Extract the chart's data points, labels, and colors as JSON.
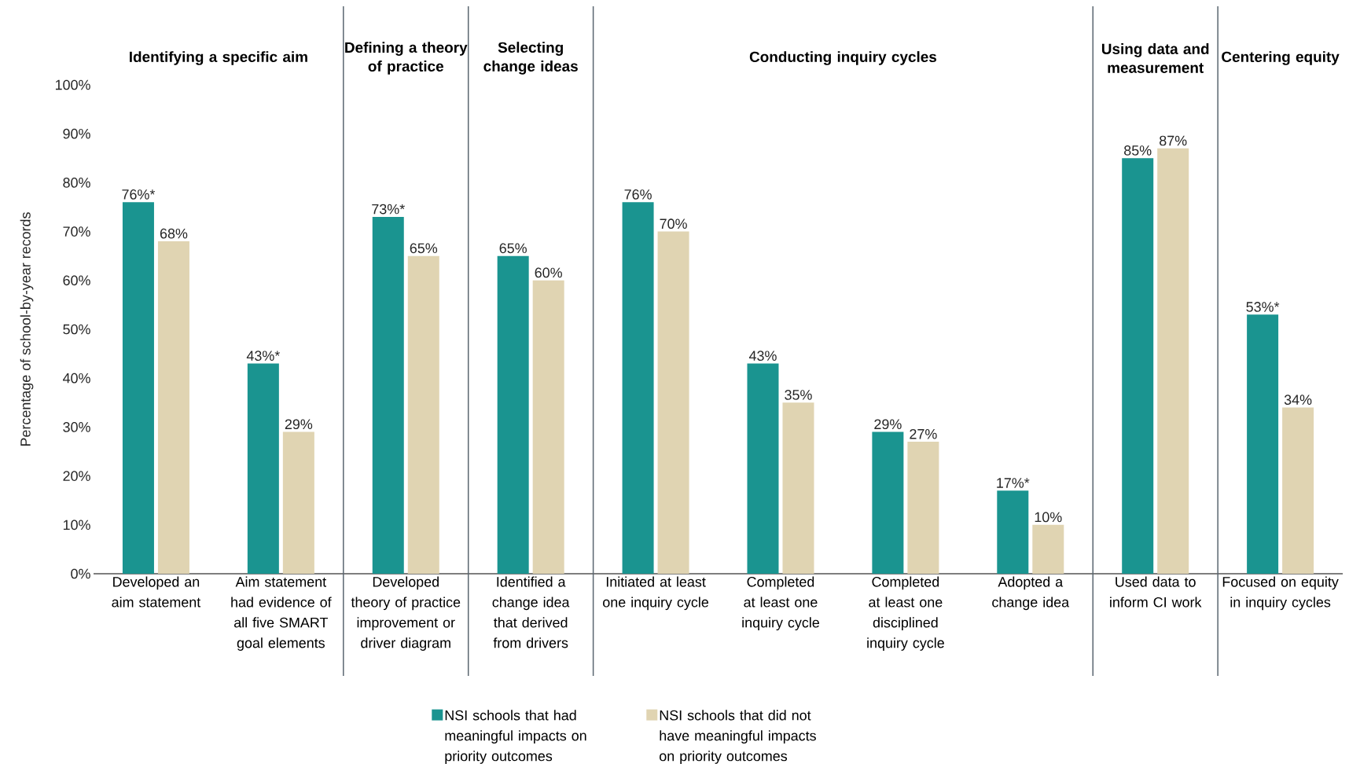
{
  "chart_data": {
    "type": "bar",
    "ylabel": "Percentage of school-by-year records",
    "categories": [
      "Developed an aim statement",
      "Aim statement had evidence of all five SMART goal elements",
      "Developed theory of practice improvement or driver diagram",
      "Identified a change idea that derived from drivers",
      "Initiated at least one inquiry cycle",
      "Completed at least one inquiry cycle",
      "Completed at least one disciplined inquiry cycle",
      "Adopted a change idea",
      "Used data to inform CI work",
      "Focused on equity in inquiry cycles"
    ],
    "series": [
      {
        "name": "NSI schools that had meaningful impacts on priority outcomes",
        "color": "#1a9490",
        "values": [
          76,
          43,
          73,
          65,
          76,
          43,
          29,
          17,
          85,
          53
        ],
        "value_labels": [
          "76%*",
          "43%*",
          "73%*",
          "65%",
          "76%",
          "43%",
          "29%",
          "17%*",
          "85%",
          "53%*"
        ]
      },
      {
        "name": "NSI schools that did not have meaningful impacts on priority outcomes",
        "color": "#e0d4b2",
        "values": [
          68,
          29,
          65,
          60,
          70,
          35,
          27,
          10,
          87,
          34
        ],
        "value_labels": [
          "68%",
          "29%",
          "65%",
          "60%",
          "70%",
          "35%",
          "27%",
          "10%",
          "87%",
          "34%"
        ]
      }
    ],
    "ylim": [
      0,
      100
    ],
    "yticks": [
      {
        "value": 0,
        "label": "0%"
      },
      {
        "value": 10,
        "label": "10%"
      },
      {
        "value": 20,
        "label": "20%"
      },
      {
        "value": 30,
        "label": "30%"
      },
      {
        "value": 40,
        "label": "40%"
      },
      {
        "value": 50,
        "label": "50%"
      },
      {
        "value": 60,
        "label": "60%"
      },
      {
        "value": 70,
        "label": "70%"
      },
      {
        "value": 80,
        "label": "80%"
      },
      {
        "value": 90,
        "label": "90%"
      },
      {
        "value": 100,
        "label": "100%"
      }
    ],
    "annotations": [
      "Identifying a specific aim",
      "Defining a theory of practice",
      "Selecting change ideas",
      "Conducting inquiry cycles",
      "Using data and measurement",
      "Centering equity"
    ],
    "legend": "bottom",
    "grid": false
  }
}
